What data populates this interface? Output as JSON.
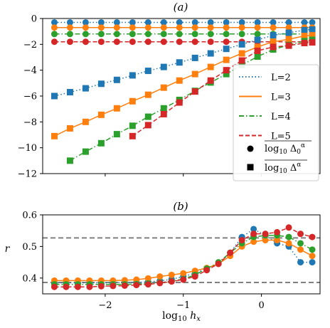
{
  "colors": {
    "L=2": "#1f77b4",
    "L=3": "#ff7f0e",
    "L=4": "#2ca02c",
    "L=5": "#d62728",
    "reference_line": "#808080"
  },
  "chart_data": [
    {
      "type": "line",
      "title": "(a)",
      "xlabel": "",
      "ylabel": "",
      "xlim": [
        -2.8,
        0.75
      ],
      "ylim": [
        -12,
        0
      ],
      "xticks": [
        -2,
        -1,
        0
      ],
      "yticks": [
        -12,
        -10,
        -8,
        -6,
        -4,
        -2,
        0
      ],
      "ytick_labels": [
        "−12",
        "−10",
        "−8",
        "−6",
        "−4",
        "−2",
        "0"
      ],
      "legend_position": "lower right",
      "legend": {
        "lines": [
          {
            "label": "L=2",
            "style": "dotted",
            "color": "#1f77b4"
          },
          {
            "label": "L=3",
            "style": "solid",
            "color": "#ff7f0e"
          },
          {
            "label": "L=4",
            "style": "dashdot",
            "color": "#2ca02c"
          },
          {
            "label": "L=5",
            "style": "dashed",
            "color": "#d62728"
          }
        ],
        "markers": [
          {
            "label": "log10 Δ0^α (overlined)",
            "marker": "circle"
          },
          {
            "label": "log10 Δ^α (overlined)",
            "marker": "square"
          }
        ]
      },
      "series": [
        {
          "name": "L=2",
          "marker": "circle",
          "x": [
            -2.65,
            -2.45,
            -2.25,
            -2.05,
            -1.85,
            -1.65,
            -1.45,
            -1.25,
            -1.05,
            -0.85,
            -0.65,
            -0.45,
            -0.25,
            -0.05,
            0.15,
            0.35,
            0.55,
            0.65
          ],
          "y": [
            -0.3,
            -0.3,
            -0.3,
            -0.3,
            -0.3,
            -0.3,
            -0.3,
            -0.3,
            -0.3,
            -0.3,
            -0.3,
            -0.3,
            -0.3,
            -0.3,
            -0.3,
            -0.3,
            -0.3,
            -0.3
          ]
        },
        {
          "name": "L=3",
          "marker": "circle",
          "x": [
            -2.65,
            -2.45,
            -2.25,
            -2.05,
            -1.85,
            -1.65,
            -1.45,
            -1.25,
            -1.05,
            -0.85,
            -0.65,
            -0.45,
            -0.25,
            -0.05,
            0.15,
            0.35,
            0.55,
            0.65
          ],
          "y": [
            -0.7,
            -0.7,
            -0.7,
            -0.7,
            -0.7,
            -0.7,
            -0.7,
            -0.7,
            -0.7,
            -0.7,
            -0.7,
            -0.7,
            -0.7,
            -0.7,
            -0.7,
            -0.7,
            -0.7,
            -0.7
          ]
        },
        {
          "name": "L=4",
          "marker": "circle",
          "x": [
            -2.65,
            -2.45,
            -2.25,
            -2.05,
            -1.85,
            -1.65,
            -1.45,
            -1.25,
            -1.05,
            -0.85,
            -0.65,
            -0.45,
            -0.25,
            -0.05,
            0.15,
            0.35,
            0.55,
            0.65
          ],
          "y": [
            -1.2,
            -1.2,
            -1.2,
            -1.2,
            -1.2,
            -1.2,
            -1.2,
            -1.2,
            -1.2,
            -1.2,
            -1.2,
            -1.2,
            -1.2,
            -1.2,
            -1.2,
            -1.2,
            -1.2,
            -1.2
          ]
        },
        {
          "name": "L=5",
          "marker": "circle",
          "x": [
            -2.65,
            -2.45,
            -2.25,
            -2.05,
            -1.85,
            -1.65,
            -1.45,
            -1.25,
            -1.05,
            -0.85,
            -0.65,
            -0.45,
            -0.25,
            -0.05,
            0.15,
            0.35,
            0.55,
            0.65
          ],
          "y": [
            -1.8,
            -1.8,
            -1.8,
            -1.8,
            -1.8,
            -1.8,
            -1.8,
            -1.8,
            -1.8,
            -1.8,
            -1.8,
            -1.8,
            -1.8,
            -1.8,
            -1.8,
            -1.8,
            -1.8,
            -1.8
          ]
        },
        {
          "name": "L=2",
          "marker": "square",
          "x": [
            -2.65,
            -2.45,
            -2.25,
            -2.05,
            -1.85,
            -1.65,
            -1.45,
            -1.25,
            -1.05,
            -0.85,
            -0.65,
            -0.45,
            -0.25,
            -0.05,
            0.15,
            0.35,
            0.55,
            0.65
          ],
          "y": [
            -6.0,
            -5.7,
            -5.4,
            -5.05,
            -4.75,
            -4.4,
            -4.05,
            -3.75,
            -3.4,
            -3.05,
            -2.7,
            -2.35,
            -2.0,
            -1.65,
            -1.3,
            -1.1,
            -0.9,
            -0.85
          ]
        },
        {
          "name": "L=3",
          "marker": "square",
          "x": [
            -2.65,
            -2.45,
            -2.25,
            -2.05,
            -1.85,
            -1.65,
            -1.45,
            -1.25,
            -1.05,
            -0.85,
            -0.65,
            -0.45,
            -0.25,
            -0.05,
            0.15,
            0.35,
            0.55,
            0.65
          ],
          "y": [
            -9.1,
            -8.5,
            -8.0,
            -7.45,
            -6.95,
            -6.4,
            -5.9,
            -5.35,
            -4.8,
            -4.3,
            -3.75,
            -3.2,
            -2.7,
            -2.2,
            -1.8,
            -1.6,
            -1.35,
            -1.3
          ]
        },
        {
          "name": "L=4",
          "marker": "square",
          "x": [
            -2.45,
            -2.25,
            -2.05,
            -1.85,
            -1.65,
            -1.45,
            -1.25,
            -1.05,
            -0.85,
            -0.65,
            -0.45,
            -0.25,
            -0.05,
            0.15,
            0.35,
            0.55,
            0.65
          ],
          "y": [
            -11.0,
            -10.3,
            -9.65,
            -8.95,
            -8.3,
            -7.6,
            -6.95,
            -6.3,
            -5.6,
            -4.95,
            -4.3,
            -3.6,
            -2.95,
            -2.4,
            -2.05,
            -1.75,
            -1.65
          ]
        },
        {
          "name": "L=5",
          "marker": "square",
          "x": [
            -1.65,
            -1.45,
            -1.25,
            -1.05,
            -0.85,
            -0.65,
            -0.45,
            -0.25,
            -0.05,
            0.15,
            0.35,
            0.55,
            0.65
          ],
          "y": [
            -9.1,
            -8.25,
            -7.4,
            -6.5,
            -5.65,
            -4.8,
            -4.0,
            -3.25,
            -2.5,
            -2.2,
            -2.1,
            -1.9,
            -1.85
          ]
        }
      ]
    },
    {
      "type": "line",
      "title": "(b)",
      "xlabel": "log10 hx",
      "ylabel": "r",
      "xlim": [
        -2.8,
        0.75
      ],
      "ylim": [
        0.35,
        0.6
      ],
      "xticks": [
        -2,
        -1,
        0
      ],
      "xtick_labels": [
        "−2",
        "−1",
        "0"
      ],
      "yticks": [
        0.4,
        0.5,
        0.6
      ],
      "ytick_labels": [
        "0.4",
        "0.5",
        "0.6"
      ],
      "reference_lines": [
        0.527,
        0.386
      ],
      "series": [
        {
          "name": "L=2",
          "x": [
            -2.65,
            -2.5,
            -2.35,
            -2.2,
            -2.05,
            -1.9,
            -1.75,
            -1.6,
            -1.45,
            -1.3,
            -1.15,
            -1.0,
            -0.85,
            -0.7,
            -0.55,
            -0.4,
            -0.25,
            -0.1,
            0.05,
            0.2,
            0.35,
            0.5,
            0.65
          ],
          "y": [
            0.385,
            0.385,
            0.385,
            0.385,
            0.385,
            0.385,
            0.386,
            0.386,
            0.388,
            0.391,
            0.396,
            0.405,
            0.415,
            0.43,
            0.445,
            0.48,
            0.53,
            0.555,
            0.535,
            0.51,
            0.5,
            0.45,
            0.45
          ]
        },
        {
          "name": "L=3",
          "x": [
            -2.65,
            -2.5,
            -2.35,
            -2.2,
            -2.05,
            -1.9,
            -1.75,
            -1.6,
            -1.45,
            -1.3,
            -1.15,
            -1.0,
            -0.85,
            -0.7,
            -0.55,
            -0.4,
            -0.25,
            -0.1,
            0.05,
            0.2,
            0.35,
            0.5,
            0.65
          ],
          "y": [
            0.392,
            0.392,
            0.392,
            0.392,
            0.392,
            0.392,
            0.393,
            0.395,
            0.399,
            0.405,
            0.41,
            0.415,
            0.423,
            0.432,
            0.445,
            0.47,
            0.5,
            0.515,
            0.52,
            0.52,
            0.51,
            0.49,
            0.47
          ]
        },
        {
          "name": "L=4",
          "x": [
            -2.65,
            -2.5,
            -2.35,
            -2.2,
            -2.05,
            -1.9,
            -1.75,
            -1.6,
            -1.45,
            -1.3,
            -1.15,
            -1.0,
            -0.85,
            -0.7,
            -0.55,
            -0.4,
            -0.25,
            -0.1,
            0.05,
            0.2,
            0.35,
            0.5,
            0.65
          ],
          "y": [
            0.38,
            0.38,
            0.38,
            0.38,
            0.38,
            0.38,
            0.38,
            0.381,
            0.383,
            0.386,
            0.39,
            0.397,
            0.41,
            0.43,
            0.45,
            0.48,
            0.51,
            0.53,
            0.535,
            0.535,
            0.53,
            0.51,
            0.49
          ]
        },
        {
          "name": "L=5",
          "x": [
            -2.65,
            -2.5,
            -2.35,
            -2.2,
            -2.05,
            -1.9,
            -1.75,
            -1.6,
            -1.45,
            -1.3,
            -1.15,
            -1.0,
            -0.85,
            -0.7,
            -0.55,
            -0.4,
            -0.25,
            -0.1,
            0.05,
            0.2,
            0.35,
            0.5,
            0.65
          ],
          "y": [
            0.372,
            0.372,
            0.372,
            0.372,
            0.374,
            0.375,
            0.376,
            0.378,
            0.38,
            0.384,
            0.389,
            0.395,
            0.405,
            0.425,
            0.445,
            0.48,
            0.52,
            0.54,
            0.54,
            0.545,
            0.56,
            0.54,
            0.53
          ]
        }
      ]
    }
  ]
}
